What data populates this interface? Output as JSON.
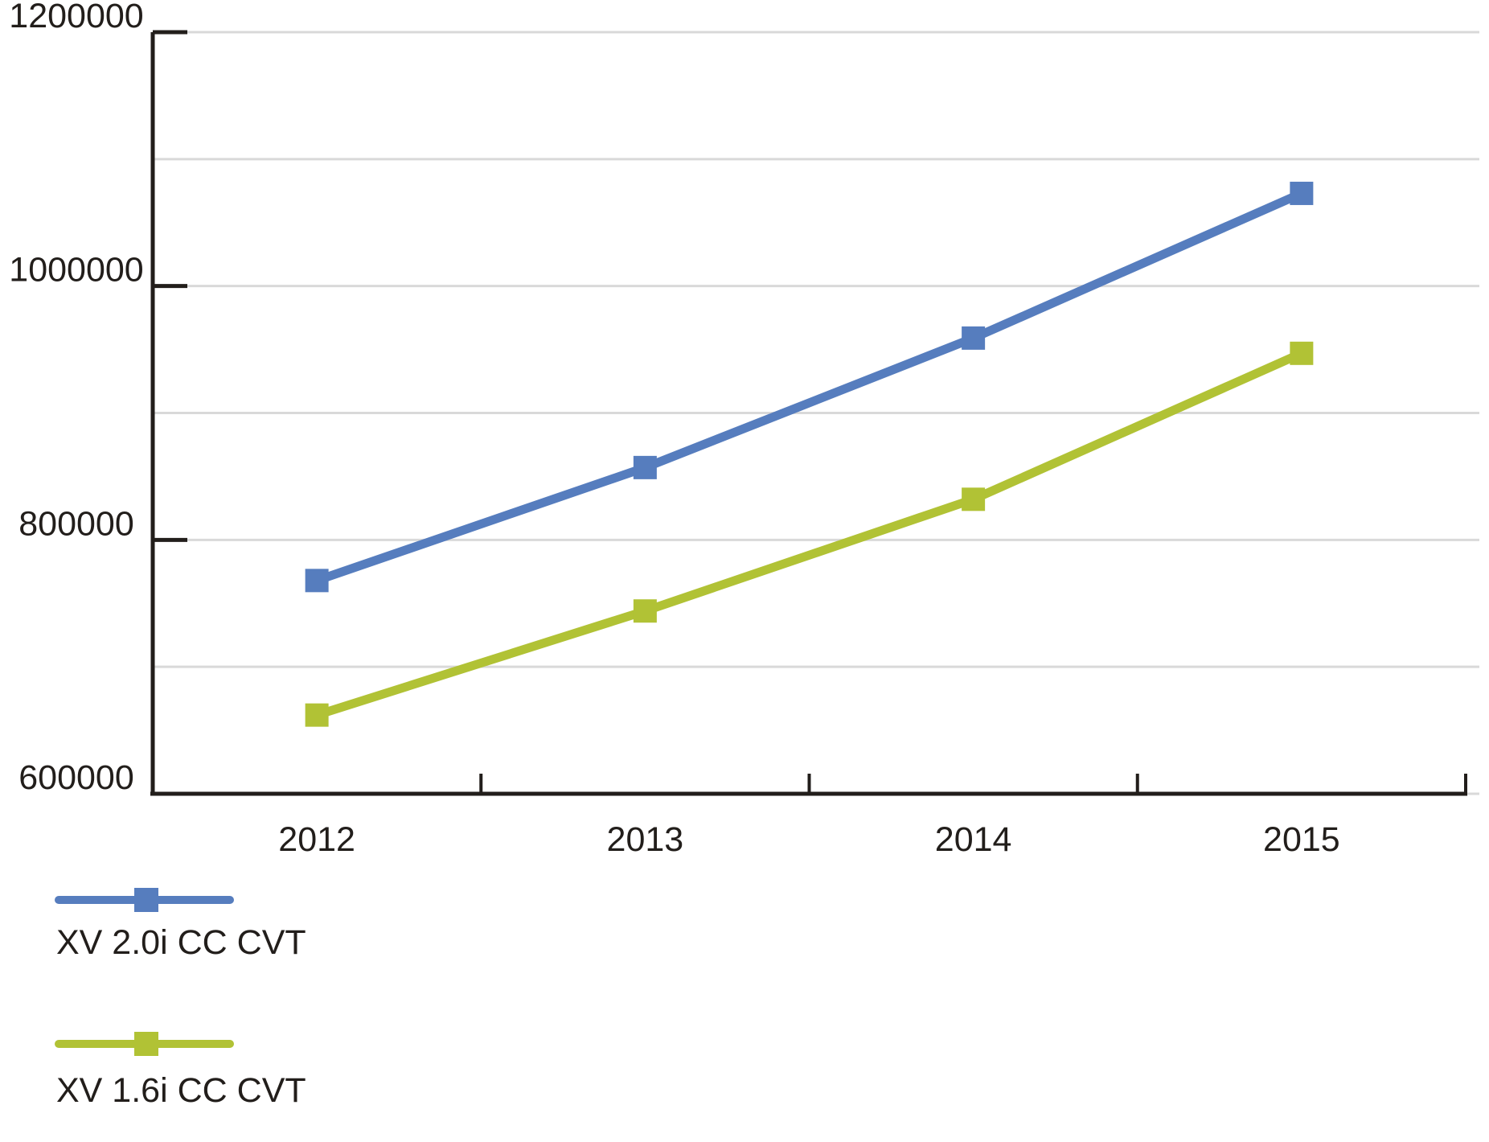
{
  "chart_data": {
    "type": "line",
    "title": "",
    "xlabel": "",
    "ylabel": "",
    "categories": [
      "2012",
      "2013",
      "2014",
      "2015"
    ],
    "series": [
      {
        "name": "XV 2.0i CC CVT",
        "color": "#567DBE",
        "marker": "square",
        "values": [
          768000,
          857000,
          959000,
          1073000
        ]
      },
      {
        "name": "XV 1.6i CC CVT",
        "color": "#B1C235",
        "marker": "square",
        "values": [
          662000,
          744000,
          832000,
          947000
        ]
      }
    ],
    "ylim": [
      600000,
      1200000
    ],
    "y_grid_step": 100000,
    "y_label_step": 200000,
    "y_tick_labels": [
      "600000",
      "800000",
      "1000000",
      "1200000"
    ],
    "grid": "horizontal",
    "legend_position": "bottom-left",
    "colors": {
      "grid": "#D9D9D9",
      "axis": "#221E1B",
      "text": "#221E1B",
      "background": "#FFFFFF"
    }
  }
}
